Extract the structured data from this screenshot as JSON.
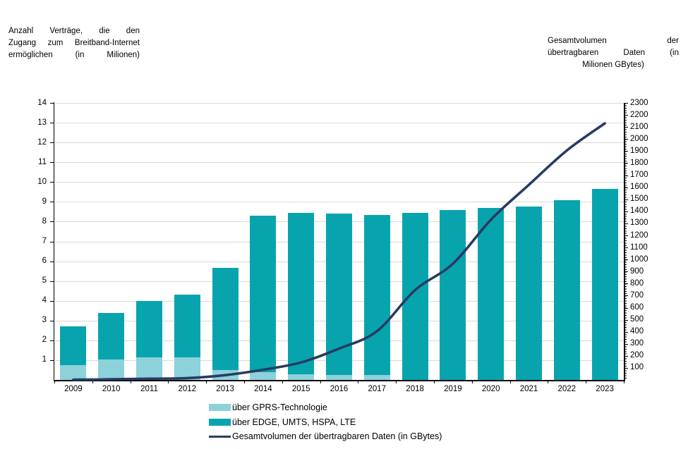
{
  "titles": {
    "left_lines": [
      "Anzahl Verträge, die den",
      "Zugang zum Breitband-Internet",
      "ermöglichen (in Milionen)"
    ],
    "right_lines": [
      "Gesamtvolumen der",
      "übertragbaren Daten (in",
      "Milionen GBytes)"
    ]
  },
  "colors": {
    "bar_gprs": "#8DD1DA",
    "bar_edge": "#08A4AE",
    "line": "#273C63",
    "gridline": "#D9D9D9",
    "axis": "#000000",
    "text": "#000000",
    "background": "#FFFFFF"
  },
  "chart_data": {
    "type": "bar",
    "subtype": "stacked-bars-with-line-dual-axis",
    "categories": [
      "2009",
      "2010",
      "2011",
      "2012",
      "2013",
      "2014",
      "2015",
      "2016",
      "2017",
      "2018",
      "2019",
      "2020",
      "2021",
      "2022",
      "2023"
    ],
    "series": [
      {
        "name": "über GPRS-Technologie",
        "type": "bar",
        "stack": "vertraege",
        "axis": "left",
        "values": [
          0.75,
          1.05,
          1.15,
          1.15,
          0.5,
          0.4,
          0.3,
          0.25,
          0.25,
          0,
          0,
          0,
          0,
          0,
          0
        ]
      },
      {
        "name": "über EDGE, UMTS, HSPA, LTE",
        "type": "bar",
        "stack": "vertraege",
        "axis": "left",
        "values": [
          1.95,
          2.35,
          2.85,
          3.15,
          5.15,
          7.9,
          8.15,
          8.15,
          8.1,
          8.45,
          8.6,
          8.7,
          8.75,
          9.1,
          9.65
        ]
      },
      {
        "name": "Gesamtvolumen der übertragbaren Daten (in GBytes)",
        "type": "line",
        "axis": "right",
        "values": [
          2,
          5,
          10,
          15,
          40,
          85,
          145,
          260,
          405,
          745,
          965,
          1330,
          1620,
          1905,
          2130
        ]
      }
    ],
    "stacked_totals": [
      2.7,
      3.4,
      4.0,
      4.3,
      5.65,
      8.3,
      8.45,
      8.4,
      8.35,
      8.45,
      8.6,
      8.7,
      8.75,
      9.1,
      9.65
    ],
    "left_axis": {
      "label": "Anzahl Verträge, die den Zugang zum Breitband-Internet ermöglichen (in Milionen)",
      "min": 0,
      "max": 14,
      "tick_step": 1,
      "ticks": [
        1,
        2,
        3,
        4,
        5,
        6,
        7,
        8,
        9,
        10,
        11,
        12,
        13,
        14
      ]
    },
    "right_axis": {
      "label": "Gesamtvolumen der übertragbaren Daten (in Milionen GBytes)",
      "min": 0,
      "max": 2300,
      "tick_step": 100,
      "ticks": [
        100,
        200,
        300,
        400,
        500,
        600,
        700,
        800,
        900,
        1000,
        1100,
        1200,
        1300,
        1400,
        1500,
        1600,
        1700,
        1800,
        1900,
        2000,
        2100,
        2200,
        2300
      ]
    },
    "grid": true,
    "legend_position": "bottom"
  }
}
